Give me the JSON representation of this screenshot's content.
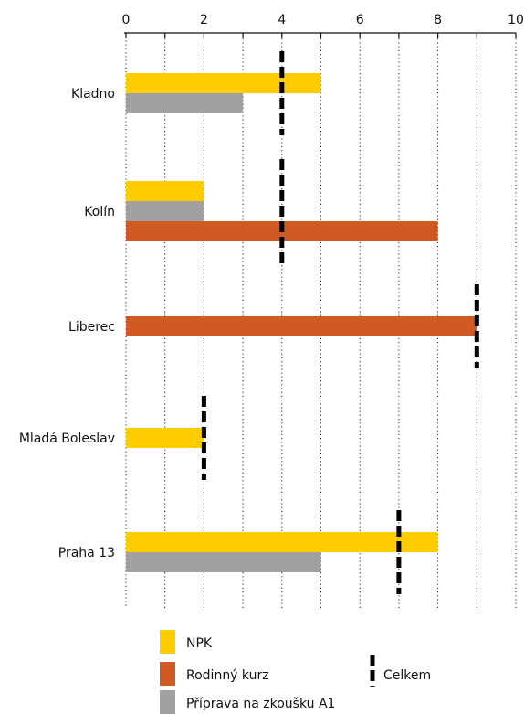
{
  "chart_data": {
    "type": "bar",
    "orientation": "horizontal",
    "categories": [
      "Kladno",
      "Kolín",
      "Liberec",
      "Mladá Boleslav",
      "Praha 13"
    ],
    "x_ticks": [
      "0",
      "2",
      "4",
      "6",
      "8",
      "10"
    ],
    "xlim": [
      0,
      10
    ],
    "series": [
      {
        "name": "NPK",
        "color": "#ffcc00",
        "values": [
          5,
          2,
          null,
          2,
          8
        ]
      },
      {
        "name": "Příprava na zkoušku A1",
        "color": "#a0a0a0",
        "values": [
          3,
          2,
          null,
          null,
          5
        ]
      },
      {
        "name": "Rodinný kurz",
        "color": "#d05a24",
        "values": [
          null,
          8,
          9,
          null,
          null
        ]
      }
    ],
    "total": {
      "name": "Celkem",
      "values": [
        4,
        4,
        9,
        2,
        7
      ]
    },
    "grid": "vertical dotted",
    "legend": {
      "position": "bottom",
      "items": [
        {
          "label": "NPK",
          "color": "#ffcc00",
          "kind": "box"
        },
        {
          "label": "Rodinný kurz",
          "color": "#d05a24",
          "kind": "box"
        },
        {
          "label": "Příprava na zkoušku A1",
          "color": "#a0a0a0",
          "kind": "box"
        },
        {
          "label": "Celkem",
          "color": "#000000",
          "kind": "dash"
        }
      ]
    }
  }
}
